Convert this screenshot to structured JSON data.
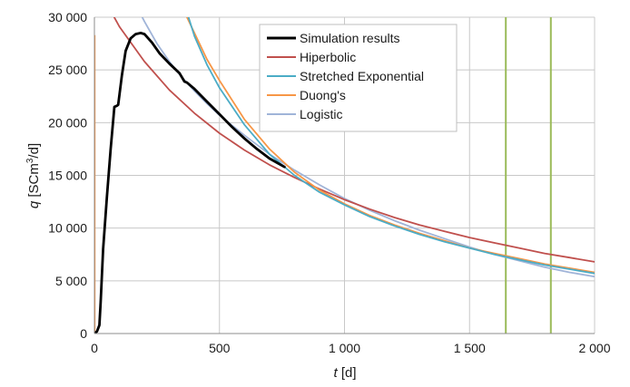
{
  "chart_data": {
    "type": "line",
    "title": "",
    "xlabel": {
      "symbol": "t",
      "unit": " [d]"
    },
    "ylabel": {
      "symbol": "q",
      "unit_pre": " [SCm",
      "unit_sup": "3",
      "unit_post": "/d]"
    },
    "xlim": [
      0,
      2000
    ],
    "ylim": [
      0,
      30000
    ],
    "x_ticks": [
      0,
      500,
      1000,
      1500,
      2000
    ],
    "x_tick_labels": [
      "0",
      "500",
      "1 000",
      "1 500",
      "2 000"
    ],
    "y_ticks": [
      0,
      5000,
      10000,
      15000,
      20000,
      25000,
      30000
    ],
    "y_tick_labels": [
      "0",
      "5 000",
      "10 000",
      "15 000",
      "20 000",
      "25 000",
      "30 000"
    ],
    "grid": true,
    "legend_position": "top-center",
    "series": [
      {
        "name": "Simulation results",
        "color": "#000000",
        "x": [
          0,
          10,
          20,
          25,
          35,
          50,
          65,
          80,
          90,
          95,
          110,
          125,
          145,
          165,
          185,
          200,
          230,
          260,
          300,
          340,
          360,
          370,
          400,
          450,
          500,
          550,
          600,
          650,
          700,
          730,
          760
        ],
        "values": [
          0,
          200,
          800,
          3000,
          8000,
          13000,
          17500,
          21500,
          21600,
          21700,
          24500,
          26800,
          28000,
          28400,
          28500,
          28400,
          27600,
          26600,
          25600,
          24700,
          23900,
          23800,
          23200,
          22000,
          20800,
          19600,
          18500,
          17500,
          16600,
          16200,
          15800
        ]
      },
      {
        "name": "Hiperbolic",
        "color": "#c0504d",
        "x": [
          0,
          100,
          200,
          300,
          400,
          500,
          600,
          700,
          800,
          900,
          1000,
          1100,
          1200,
          1300,
          1400,
          1500,
          1600,
          1700,
          1800,
          1900,
          2000
        ],
        "values": [
          33400,
          29100,
          25800,
          23100,
          20900,
          19000,
          17400,
          16000,
          14800,
          13700,
          12700,
          11800,
          11000,
          10300,
          9700,
          9100,
          8600,
          8100,
          7600,
          7200,
          6800
        ]
      },
      {
        "name": "Stretched Exponential",
        "color": "#4bacc6",
        "x": [
          350,
          400,
          450,
          500,
          600,
          700,
          800,
          900,
          1000,
          1100,
          1200,
          1300,
          1400,
          1500,
          1600,
          1700,
          1800,
          1900,
          2000
        ],
        "values": [
          32000,
          28200,
          25500,
          23300,
          19800,
          17000,
          15000,
          13400,
          12200,
          11100,
          10200,
          9400,
          8700,
          8100,
          7500,
          7000,
          6500,
          6100,
          5700
        ]
      },
      {
        "name": "Duong's",
        "color": "#f79646",
        "x": [
          330,
          400,
          450,
          500,
          600,
          700,
          800,
          900,
          1000,
          1100,
          1200,
          1300,
          1400,
          1500,
          1600,
          1700,
          1800,
          1900,
          2000
        ],
        "values": [
          32000,
          28500,
          26000,
          24000,
          20300,
          17500,
          15300,
          13600,
          12300,
          11200,
          10300,
          9500,
          8800,
          8100,
          7600,
          7100,
          6600,
          6200,
          5800
        ]
      },
      {
        "name": "Logistic",
        "color": "#a0b4d8",
        "x": [
          170,
          200,
          250,
          300,
          350,
          400,
          450,
          500,
          600,
          700,
          800,
          900,
          1000,
          1100,
          1200,
          1300,
          1400,
          1500,
          1600,
          1700,
          1800,
          1900,
          2000
        ],
        "values": [
          31000,
          29600,
          27500,
          25800,
          24300,
          23000,
          21800,
          20700,
          18800,
          17000,
          15500,
          14100,
          12800,
          11700,
          10700,
          9800,
          9000,
          8200,
          7500,
          6900,
          6300,
          5800,
          5400
        ]
      }
    ],
    "vertical_lines": [
      {
        "x": 1645,
        "color": "#9bbb59"
      },
      {
        "x": 1825,
        "color": "#9bbb59"
      }
    ],
    "extra_segments": [
      {
        "x": [
          1,
          1
        ],
        "values": [
          0,
          28300
        ],
        "color": "#f79646"
      }
    ]
  }
}
